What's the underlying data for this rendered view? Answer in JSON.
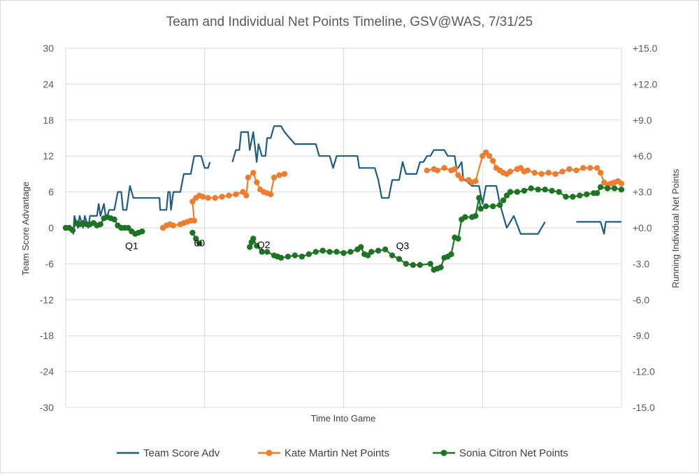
{
  "chart_data": {
    "type": "line",
    "title": "Team and Individual Net Points Timeline, GSV@WAS, 7/31/25",
    "xlabel": "Time Into Game",
    "ylabel": "Team Score Advantage",
    "y2label": "Running Individual Net Points",
    "xlim": [
      0,
      160
    ],
    "ylim": [
      -30,
      30
    ],
    "y2lim": [
      -15,
      15
    ],
    "y_ticks": [
      "30",
      "24",
      "18",
      "12",
      "6",
      "0",
      "-6",
      "-12",
      "-18",
      "-24",
      "-30"
    ],
    "y2_ticks": [
      "+15.0",
      "+12.0",
      "+9.0",
      "+6.0",
      "+3.0",
      "+0.0",
      "-3.0",
      "-6.0",
      "-9.0",
      "-12.0",
      "-15.0"
    ],
    "x_gridlines": [
      0,
      40,
      80,
      120,
      160
    ],
    "grid": true,
    "legend_position": "bottom",
    "annotations": [
      {
        "text": "Q1",
        "x": 19,
        "y": -3
      },
      {
        "text": "60",
        "x": 38.5,
        "y": -2.5
      },
      {
        "text": "Q2",
        "x": 57,
        "y": -2.8
      },
      {
        "text": "Q3",
        "x": 97,
        "y": -3
      }
    ],
    "colors": {
      "team": "#1f5c80",
      "kate": "#ed7d31",
      "sonia": "#1e7324",
      "grid": "#d9d9d9"
    },
    "series": [
      {
        "name": "Team Score Adv",
        "axis": "left",
        "markers": false,
        "points": [
          [
            0,
            0
          ],
          [
            2,
            0
          ],
          [
            2.2,
            -1
          ],
          [
            2.5,
            2
          ],
          [
            3.5,
            0
          ],
          [
            4,
            2
          ],
          [
            4.5,
            1
          ],
          [
            5,
            0
          ],
          [
            5.5,
            2
          ],
          [
            6,
            1
          ],
          [
            6.5,
            0
          ],
          [
            7,
            2
          ],
          [
            9,
            2
          ],
          [
            9.5,
            4
          ],
          [
            10,
            2
          ],
          [
            11,
            4
          ],
          [
            11.5,
            2
          ],
          [
            12,
            2
          ],
          [
            12.5,
            3
          ],
          [
            14,
            3
          ],
          [
            15,
            6
          ],
          [
            16,
            6
          ],
          [
            16.5,
            3
          ],
          [
            17.5,
            3
          ],
          [
            18.5,
            7
          ],
          [
            19.5,
            5
          ],
          [
            23,
            5
          ],
          [
            27,
            5
          ],
          [
            27.2,
            3
          ],
          [
            29,
            3
          ],
          [
            29.5,
            6
          ],
          [
            30,
            6
          ],
          [
            30.3,
            3
          ],
          [
            31,
            6
          ],
          [
            33,
            6
          ],
          [
            34,
            9
          ],
          [
            36,
            9
          ],
          [
            37,
            12
          ],
          [
            39,
            12
          ],
          [
            40,
            10
          ],
          [
            41,
            10
          ],
          [
            41.5,
            11
          ],
          [
            48,
            11
          ],
          [
            49,
            13
          ],
          [
            50,
            13
          ],
          [
            50.5,
            16
          ],
          [
            52.5,
            16
          ],
          [
            53,
            13
          ],
          [
            54,
            16
          ],
          [
            55,
            11
          ],
          [
            55.5,
            14
          ],
          [
            56.5,
            12
          ],
          [
            57.5,
            12
          ],
          [
            58,
            15
          ],
          [
            59,
            15
          ],
          [
            60,
            17
          ],
          [
            62,
            17
          ],
          [
            63,
            16
          ],
          [
            66,
            14
          ],
          [
            72,
            14
          ],
          [
            73,
            12
          ],
          [
            76,
            12
          ],
          [
            77,
            10
          ],
          [
            78,
            12
          ],
          [
            84,
            12
          ],
          [
            84.5,
            10
          ],
          [
            89,
            10
          ],
          [
            90,
            8
          ],
          [
            91,
            5
          ],
          [
            93,
            5
          ],
          [
            94,
            8
          ],
          [
            96,
            8
          ],
          [
            97,
            11
          ],
          [
            98,
            9
          ],
          [
            101,
            9
          ],
          [
            102,
            11
          ],
          [
            103,
            11
          ],
          [
            104,
            12
          ],
          [
            105,
            12
          ],
          [
            106,
            13
          ],
          [
            109,
            13
          ],
          [
            110,
            12
          ],
          [
            112,
            12
          ],
          [
            112.5,
            10
          ],
          [
            113,
            10
          ],
          [
            114,
            11
          ],
          [
            114.5,
            8
          ],
          [
            115,
            8
          ],
          [
            117,
            7
          ],
          [
            118,
            7
          ],
          [
            119,
            7
          ],
          [
            120,
            4
          ],
          [
            121,
            7
          ],
          [
            124,
            7
          ],
          [
            125,
            4
          ],
          [
            127,
            0
          ],
          [
            129,
            2
          ],
          [
            131,
            -1
          ],
          [
            136,
            -1
          ],
          [
            137,
            0
          ],
          [
            138,
            1
          ],
          [
            147,
            1
          ],
          [
            150,
            1
          ],
          [
            154,
            1
          ],
          [
            155,
            -1
          ],
          [
            155.5,
            1
          ],
          [
            160,
            1
          ]
        ]
      },
      {
        "name": "Kate Martin Net Points",
        "axis": "right",
        "markers": true,
        "points": [
          [
            28,
            0
          ],
          [
            29,
            0.2
          ],
          [
            30,
            0.3
          ],
          [
            31,
            0.2
          ],
          [
            33,
            0.3
          ],
          [
            34,
            0.4
          ],
          [
            35,
            0.5
          ],
          [
            36,
            0.6
          ],
          [
            37,
            0.6
          ],
          [
            36.5,
            2.2
          ],
          [
            37.5,
            2.5
          ],
          [
            38.5,
            2.7
          ],
          [
            39.5,
            2.6
          ],
          [
            41,
            2.5
          ],
          [
            43,
            2.5
          ],
          [
            45,
            2.6
          ],
          [
            47,
            2.7
          ],
          [
            49,
            2.8
          ],
          [
            51,
            3
          ],
          [
            52,
            2.7
          ],
          [
            52.5,
            4.2
          ],
          [
            54,
            4.6
          ],
          [
            55,
            3.8
          ],
          [
            56,
            3.2
          ],
          [
            57,
            3
          ],
          [
            58,
            2.9
          ],
          [
            59,
            2.8
          ],
          [
            60,
            4.2
          ],
          [
            61.5,
            4.4
          ],
          [
            63,
            4.5
          ],
          [
            104,
            4.8
          ],
          [
            106,
            4.9
          ],
          [
            107,
            4.8
          ],
          [
            109,
            5
          ],
          [
            111,
            4.8
          ],
          [
            112,
            4.9
          ],
          [
            113,
            4.4
          ],
          [
            114,
            4.1
          ],
          [
            116,
            4
          ],
          [
            117,
            3.8
          ],
          [
            118,
            3.9
          ],
          [
            120,
            6
          ],
          [
            121,
            6.3
          ],
          [
            122,
            6
          ],
          [
            123,
            5.6
          ],
          [
            124,
            5
          ],
          [
            125,
            4.8
          ],
          [
            126,
            4.6
          ],
          [
            127,
            4.5
          ],
          [
            128,
            4.7
          ],
          [
            130,
            4.9
          ],
          [
            131,
            5
          ],
          [
            132,
            4.7
          ],
          [
            133,
            4.8
          ],
          [
            135,
            4.6
          ],
          [
            137,
            4.5
          ],
          [
            139,
            4.6
          ],
          [
            141,
            4.5
          ],
          [
            143,
            4.7
          ],
          [
            145,
            4.9
          ],
          [
            147,
            4.8
          ],
          [
            149,
            5
          ],
          [
            151,
            5
          ],
          [
            153,
            5
          ],
          [
            154,
            4.6
          ],
          [
            155,
            3.8
          ],
          [
            156,
            3.6
          ],
          [
            157,
            3.7
          ],
          [
            158,
            3.8
          ],
          [
            159,
            3.9
          ],
          [
            160,
            3.7
          ]
        ]
      },
      {
        "name": "Sonia Citron Net Points",
        "axis": "right",
        "markers": true,
        "points": [
          [
            0,
            0
          ],
          [
            1,
            0
          ],
          [
            2,
            -0.2
          ],
          [
            3,
            0.4
          ],
          [
            4,
            0.3
          ],
          [
            5,
            0.4
          ],
          [
            6,
            0.3
          ],
          [
            7,
            0.3
          ],
          [
            8,
            0.4
          ],
          [
            9,
            0.2
          ],
          [
            10,
            0.3
          ],
          [
            11,
            0.8
          ],
          [
            12,
            0.9
          ],
          [
            13,
            0.8
          ],
          [
            14,
            0.7
          ],
          [
            15,
            0.2
          ],
          [
            16,
            0
          ],
          [
            17,
            0
          ],
          [
            18,
            0
          ],
          [
            19,
            -0.3
          ],
          [
            20,
            -0.5
          ],
          [
            21,
            -0.4
          ],
          [
            22,
            -0.3
          ],
          [
            36.5,
            -0.4
          ],
          [
            37.5,
            -0.9
          ],
          [
            38.5,
            -1.3
          ],
          [
            53,
            -1.6
          ],
          [
            53.5,
            -1.2
          ],
          [
            54,
            -0.9
          ],
          [
            55,
            -1.5
          ],
          [
            56.5,
            -2
          ],
          [
            58,
            -2
          ],
          [
            60,
            -2.3
          ],
          [
            61,
            -2.4
          ],
          [
            62,
            -2.5
          ],
          [
            64,
            -2.4
          ],
          [
            66,
            -2.3
          ],
          [
            68,
            -2.4
          ],
          [
            70,
            -2.2
          ],
          [
            72,
            -2
          ],
          [
            74,
            -1.9
          ],
          [
            76,
            -2
          ],
          [
            78,
            -2
          ],
          [
            80,
            -2.1
          ],
          [
            82,
            -2
          ],
          [
            84,
            -1.8
          ],
          [
            85,
            -1.6
          ],
          [
            86,
            -2.2
          ],
          [
            87,
            -2.3
          ],
          [
            88,
            -2
          ],
          [
            90,
            -1.9
          ],
          [
            92,
            -1.8
          ],
          [
            94,
            -2.3
          ],
          [
            96,
            -2.6
          ],
          [
            98,
            -3
          ],
          [
            100,
            -3.1
          ],
          [
            102,
            -3.1
          ],
          [
            105,
            -3
          ],
          [
            106,
            -3.5
          ],
          [
            107,
            -3.4
          ],
          [
            108,
            -3.3
          ],
          [
            109,
            -2.5
          ],
          [
            110,
            -2.4
          ],
          [
            111,
            -2.2
          ],
          [
            112,
            -0.8
          ],
          [
            113,
            -0.9
          ],
          [
            114,
            0.7
          ],
          [
            115,
            0.9
          ],
          [
            117,
            0.9
          ],
          [
            118,
            1
          ],
          [
            119,
            2.5
          ],
          [
            119.5,
            1.6
          ],
          [
            121,
            1.8
          ],
          [
            123,
            1.8
          ],
          [
            125,
            1.9
          ],
          [
            126,
            2.3
          ],
          [
            127,
            2.7
          ],
          [
            128,
            3
          ],
          [
            130,
            3
          ],
          [
            132,
            3.1
          ],
          [
            134,
            3.3
          ],
          [
            136,
            3.2
          ],
          [
            138,
            3.2
          ],
          [
            140,
            3.1
          ],
          [
            142,
            3
          ],
          [
            144,
            2.6
          ],
          [
            146,
            2.6
          ],
          [
            148,
            2.7
          ],
          [
            150,
            2.8
          ],
          [
            152,
            2.9
          ],
          [
            153,
            2.9
          ],
          [
            154,
            3.4
          ],
          [
            156,
            3.3
          ],
          [
            158,
            3.3
          ],
          [
            160,
            3.2
          ]
        ]
      }
    ]
  }
}
